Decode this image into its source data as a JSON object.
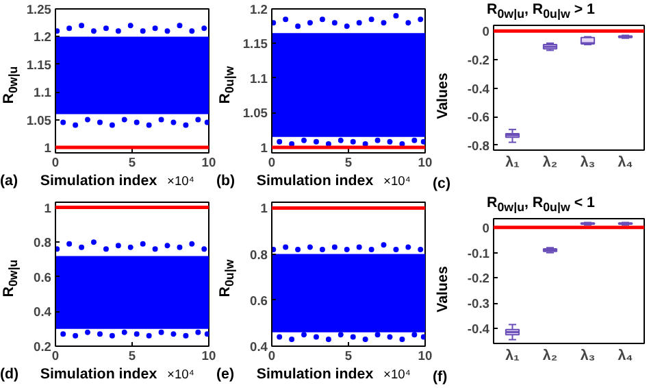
{
  "chart_data": [
    {
      "type": "scatter",
      "ylabel": "R$_{0w|u}$",
      "xlabel": "Simulation index",
      "annotations": [
        "(a)",
        "×10⁴"
      ],
      "marker": "circle",
      "xlim": [
        0,
        10
      ],
      "xticks": [
        0,
        5,
        10
      ],
      "ylim": [
        0.99,
        1.25
      ],
      "yticks": [
        1,
        1.05,
        1.1,
        1.15,
        1.2,
        1.25
      ],
      "bands": [
        {
          "axis": "y",
          "from": 1.06,
          "to": 1.2,
          "color": "#0000ff"
        }
      ],
      "ref_lines": [
        {
          "axis": "y",
          "value": 1,
          "color": "#ff0000"
        }
      ],
      "series": [
        {
          "color": "#0000ff",
          "x": [
            0.1,
            0.5,
            0.9,
            1.3,
            1.7,
            2.1,
            2.5,
            2.9,
            3.3,
            3.7,
            4.1,
            4.5,
            4.9,
            5.3,
            5.7,
            6.1,
            6.5,
            6.9,
            7.3,
            7.7,
            8.1,
            8.5,
            8.9,
            9.3,
            9.7,
            9.9
          ],
          "values": [
            1.21,
            1.045,
            1.215,
            1.04,
            1.22,
            1.05,
            1.21,
            1.045,
            1.215,
            1.04,
            1.21,
            1.05,
            1.22,
            1.045,
            1.21,
            1.04,
            1.215,
            1.05,
            1.21,
            1.045,
            1.22,
            1.04,
            1.21,
            1.05,
            1.215,
            1.045
          ]
        }
      ]
    },
    {
      "type": "scatter",
      "ylabel": "R$_{0u|w}$",
      "xlabel": "Simulation index",
      "annotations": [
        "(b)",
        "×10⁴"
      ],
      "marker": "circle",
      "xlim": [
        0,
        10
      ],
      "xticks": [
        0,
        5,
        10
      ],
      "ylim": [
        0.992,
        1.2
      ],
      "yticks": [
        1,
        1.05,
        1.1,
        1.15,
        1.2
      ],
      "bands": [
        {
          "axis": "y",
          "from": 1.015,
          "to": 1.165,
          "color": "#0000ff"
        }
      ],
      "ref_lines": [
        {
          "axis": "y",
          "value": 1,
          "color": "#ff0000"
        }
      ],
      "series": [
        {
          "color": "#0000ff",
          "x": [
            0.1,
            0.5,
            0.9,
            1.3,
            1.7,
            2.1,
            2.5,
            2.9,
            3.3,
            3.7,
            4.1,
            4.5,
            4.9,
            5.3,
            5.7,
            6.1,
            6.5,
            6.9,
            7.3,
            7.7,
            8.1,
            8.5,
            8.9,
            9.3,
            9.7,
            9.9
          ],
          "values": [
            1.18,
            1.008,
            1.185,
            1.005,
            1.175,
            1.01,
            1.18,
            1.008,
            1.185,
            1.005,
            1.18,
            1.01,
            1.175,
            1.008,
            1.18,
            1.005,
            1.185,
            1.01,
            1.18,
            1.008,
            1.19,
            1.005,
            1.18,
            1.01,
            1.185,
            1.008
          ]
        }
      ]
    },
    {
      "type": "box",
      "title": "R$_{0w|u}$, R$_{0u|w}$ > 1",
      "ylabel": "Values",
      "annotations": [
        "(c)"
      ],
      "categories": [
        "λ₁",
        "λ₂",
        "λ₃",
        "λ₄"
      ],
      "ylim": [
        -0.835,
        0.04
      ],
      "yticks": [
        -0.8,
        -0.6,
        -0.4,
        -0.2,
        0
      ],
      "ref_lines": [
        {
          "axis": "y",
          "value": 0,
          "color": "#ff0000"
        }
      ],
      "series": [
        {
          "color": "#6a4fb8",
          "boxes": [
            {
              "low": -0.78,
              "q1": -0.745,
              "median": -0.73,
              "q3": -0.72,
              "high": -0.69
            },
            {
              "low": -0.135,
              "q1": -0.125,
              "median": -0.11,
              "q3": -0.095,
              "high": -0.085
            },
            {
              "low": -0.095,
              "q1": -0.09,
              "median": -0.085,
              "q3": -0.045,
              "high": -0.04
            },
            {
              "low": -0.05,
              "q1": -0.045,
              "median": -0.04,
              "q3": -0.035,
              "high": -0.03
            }
          ]
        }
      ]
    },
    {
      "type": "scatter",
      "ylabel": "R$_{0w|u}$",
      "xlabel": "Simulation index",
      "annotations": [
        "(d)",
        "×10⁴"
      ],
      "marker": "circle",
      "xlim": [
        0,
        10
      ],
      "xticks": [
        0,
        5,
        10
      ],
      "ylim": [
        0.2,
        1.03
      ],
      "yticks": [
        0.2,
        0.4,
        0.6,
        0.8,
        1
      ],
      "bands": [
        {
          "axis": "y",
          "from": 0.3,
          "to": 0.72,
          "color": "#0000ff"
        }
      ],
      "ref_lines": [
        {
          "axis": "y",
          "value": 1,
          "color": "#ff0000"
        }
      ],
      "series": [
        {
          "color": "#0000ff",
          "x": [
            0.1,
            0.5,
            0.9,
            1.3,
            1.7,
            2.1,
            2.5,
            2.9,
            3.3,
            3.7,
            4.1,
            4.5,
            4.9,
            5.3,
            5.7,
            6.1,
            6.5,
            6.9,
            7.3,
            7.7,
            8.1,
            8.5,
            8.9,
            9.3,
            9.7,
            9.9
          ],
          "values": [
            0.76,
            0.27,
            0.79,
            0.26,
            0.77,
            0.28,
            0.8,
            0.27,
            0.76,
            0.26,
            0.78,
            0.28,
            0.77,
            0.27,
            0.79,
            0.26,
            0.76,
            0.28,
            0.78,
            0.27,
            0.77,
            0.26,
            0.79,
            0.28,
            0.76,
            0.27
          ]
        }
      ]
    },
    {
      "type": "scatter",
      "ylabel": "R$_{0u|w}$",
      "xlabel": "Simulation index",
      "annotations": [
        "(e)",
        "×10⁴"
      ],
      "marker": "circle",
      "xlim": [
        0,
        10
      ],
      "xticks": [
        0,
        5,
        10
      ],
      "ylim": [
        0.4,
        1.025
      ],
      "yticks": [
        0.4,
        0.6,
        0.8,
        1
      ],
      "bands": [
        {
          "axis": "y",
          "from": 0.46,
          "to": 0.8,
          "color": "#0000ff"
        }
      ],
      "ref_lines": [
        {
          "axis": "y",
          "value": 1,
          "color": "#ff0000"
        }
      ],
      "series": [
        {
          "color": "#0000ff",
          "x": [
            0.1,
            0.5,
            0.9,
            1.3,
            1.7,
            2.1,
            2.5,
            2.9,
            3.3,
            3.7,
            4.1,
            4.5,
            4.9,
            5.3,
            5.7,
            6.1,
            6.5,
            6.9,
            7.3,
            7.7,
            8.1,
            8.5,
            8.9,
            9.3,
            9.7,
            9.9
          ],
          "values": [
            0.82,
            0.44,
            0.83,
            0.43,
            0.82,
            0.45,
            0.83,
            0.44,
            0.82,
            0.43,
            0.83,
            0.45,
            0.82,
            0.44,
            0.83,
            0.43,
            0.82,
            0.45,
            0.84,
            0.44,
            0.82,
            0.43,
            0.83,
            0.45,
            0.82,
            0.44
          ]
        }
      ]
    },
    {
      "type": "box",
      "title": "R$_{0w|u}$, R$_{0u|w}$ < 1",
      "ylabel": "Values",
      "annotations": [
        "(f)"
      ],
      "categories": [
        "λ₁",
        "λ₂",
        "λ₃",
        "λ₄"
      ],
      "ylim": [
        -0.46,
        0.035
      ],
      "yticks": [
        -0.4,
        -0.3,
        -0.2,
        -0.1,
        0
      ],
      "ref_lines": [
        {
          "axis": "y",
          "value": 0,
          "color": "#ff0000"
        }
      ],
      "series": [
        {
          "color": "#6a4fb8",
          "boxes": [
            {
              "low": -0.445,
              "q1": -0.425,
              "median": -0.415,
              "q3": -0.405,
              "high": -0.385
            },
            {
              "low": -0.1,
              "q1": -0.095,
              "median": -0.09,
              "q3": -0.085,
              "high": -0.08
            },
            {
              "low": 0.01,
              "q1": 0.013,
              "median": 0.015,
              "q3": 0.018,
              "high": 0.02
            },
            {
              "low": 0.01,
              "q1": 0.013,
              "median": 0.015,
              "q3": 0.018,
              "high": 0.02
            }
          ]
        }
      ]
    }
  ]
}
